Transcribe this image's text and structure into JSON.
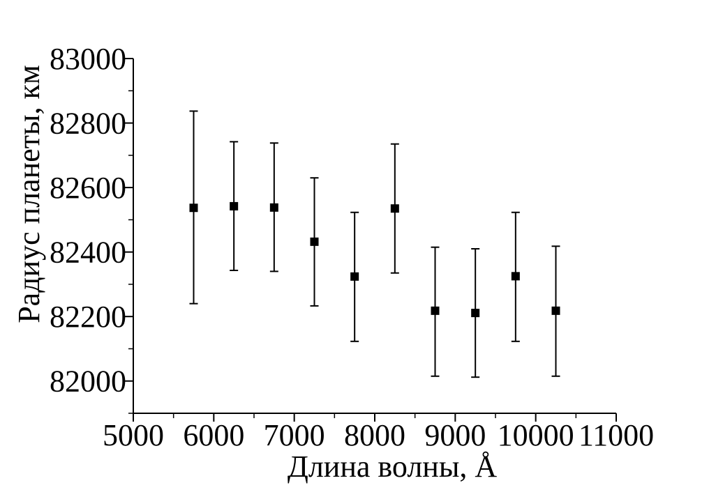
{
  "chart_data": {
    "type": "scatter",
    "title": "",
    "xlabel": "Длина волны, Å",
    "ylabel": "Радиус планеты, км",
    "xlim": [
      5000,
      11000
    ],
    "ylim": [
      81900,
      83000
    ],
    "x_ticks": [
      5000,
      6000,
      7000,
      8000,
      9000,
      10000,
      11000
    ],
    "x_tick_labels": [
      "5000",
      "6000",
      "7000",
      "8000",
      "9000",
      "10000",
      "11000"
    ],
    "x_minor_ticks": [
      5500,
      6500,
      7500,
      8500,
      9500,
      10500
    ],
    "y_ticks": [
      82000,
      82200,
      82400,
      82600,
      82800,
      83000
    ],
    "y_tick_labels": [
      "82000",
      "82200",
      "82400",
      "82600",
      "82800",
      "83000"
    ],
    "y_minor_ticks": [
      81900,
      82100,
      82300,
      82500,
      82700,
      82900
    ],
    "grid": false,
    "marker": "square",
    "color": "#000000",
    "series": [
      {
        "x": [
          5750,
          6250,
          6750,
          7250,
          7750,
          8250,
          8750,
          9250,
          9750,
          10250
        ],
        "y": [
          82537,
          82542,
          82538,
          82432,
          82324,
          82535,
          82218,
          82211,
          82325,
          82218
        ],
        "y_err_upper": [
          82837,
          82742,
          82738,
          82630,
          82523,
          82735,
          82415,
          82410,
          82523,
          82418
        ],
        "y_err_lower": [
          82240,
          82343,
          82340,
          82233,
          82123,
          82335,
          82015,
          82012,
          82123,
          82015
        ]
      }
    ]
  }
}
